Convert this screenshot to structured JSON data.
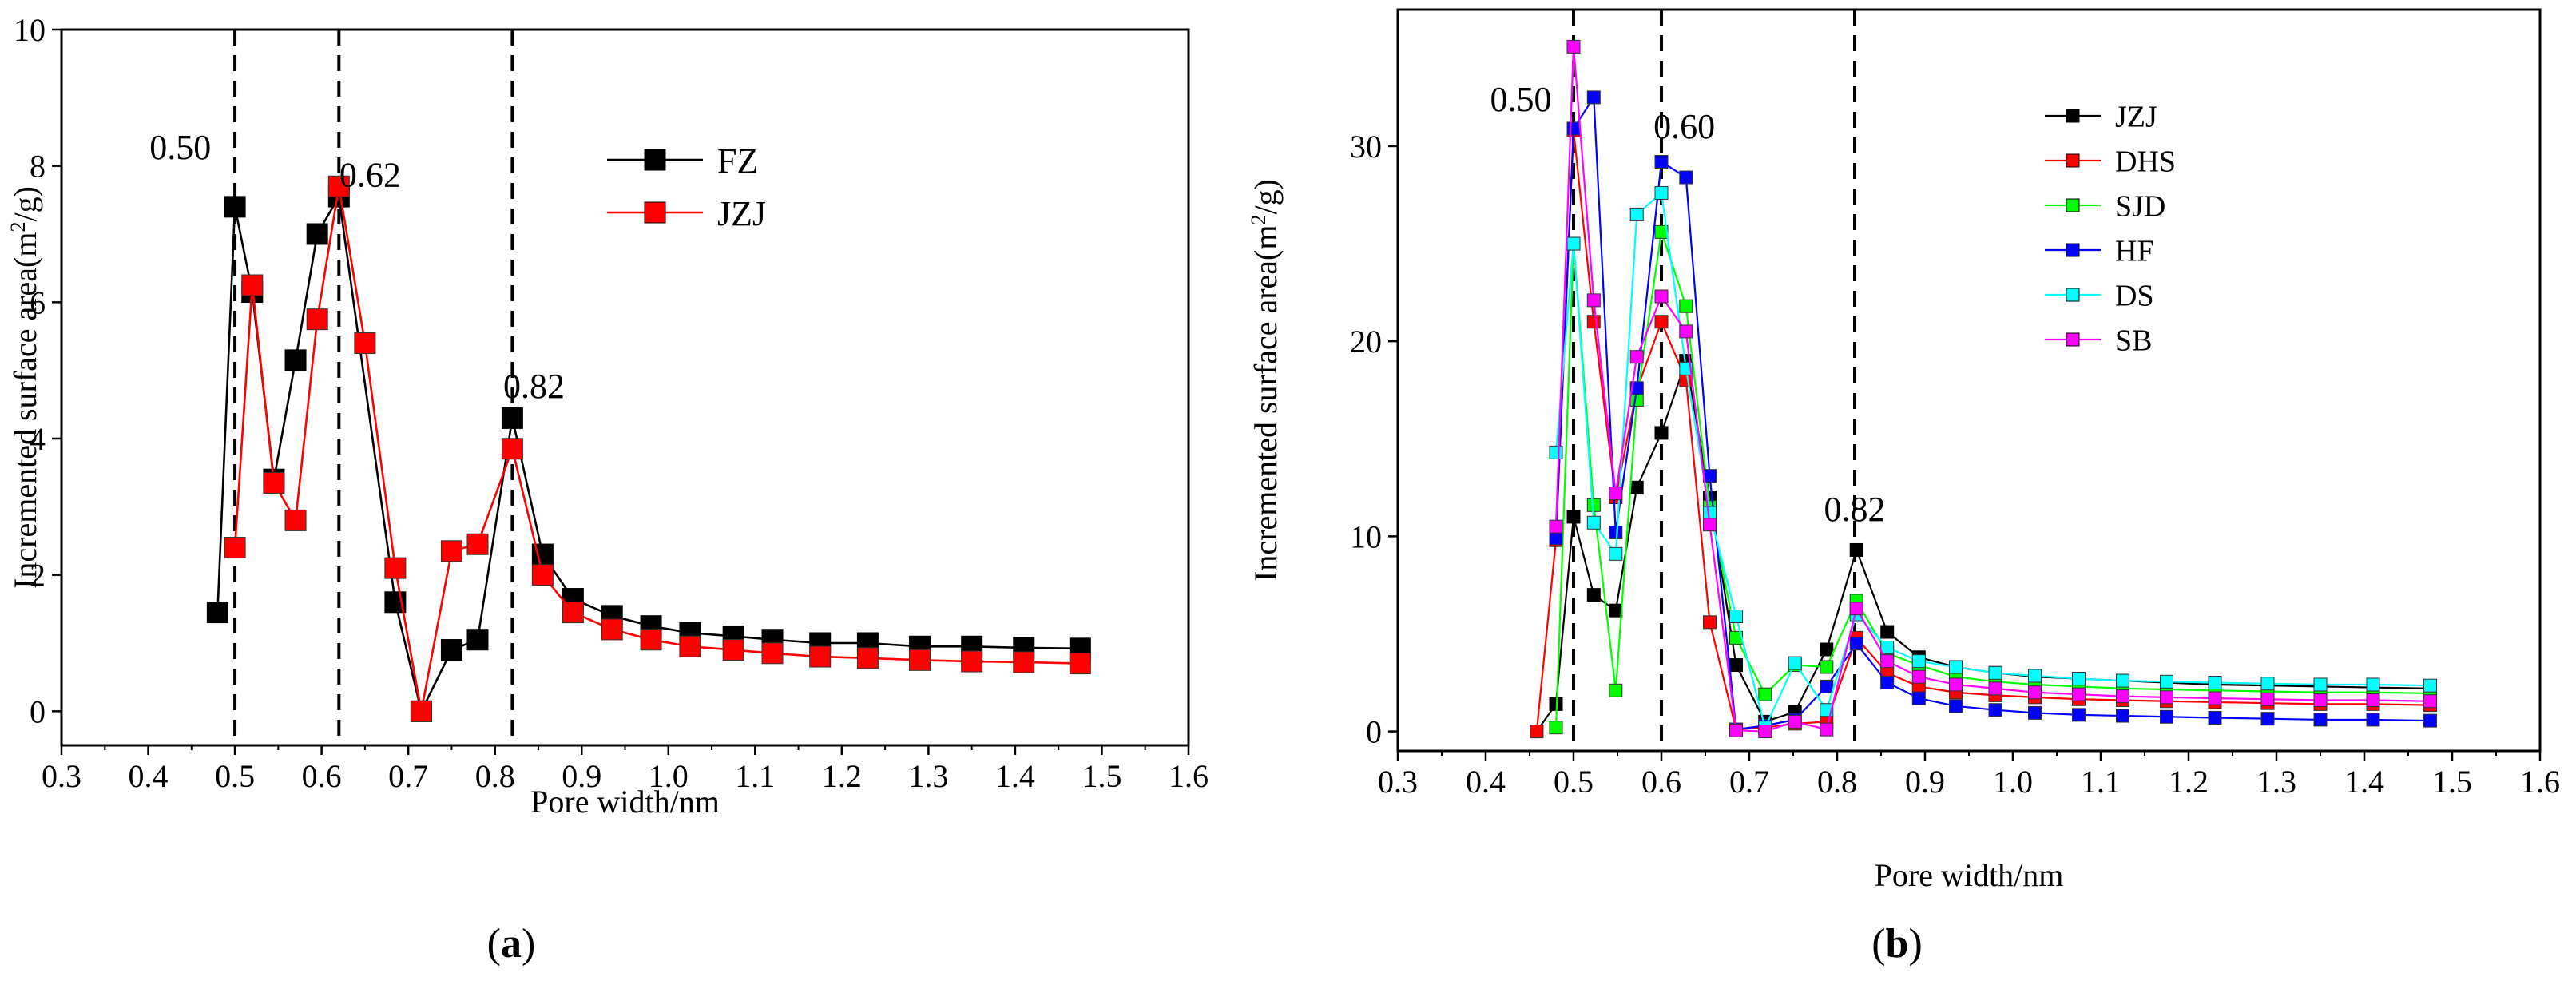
{
  "chart_data": [
    {
      "type": "line",
      "panel_label": "(a)",
      "xlabel": "Pore width/nm",
      "ylabel": "Incremented surface area(m",
      "ylabel_sup": "2",
      "ylabel_tail": "/g)",
      "xlim": [
        0.3,
        1.6
      ],
      "ylim": [
        -0.5,
        10
      ],
      "xticks": [
        0.3,
        0.4,
        0.5,
        0.6,
        0.7,
        0.8,
        0.9,
        1.0,
        1.1,
        1.2,
        1.3,
        1.4,
        1.5,
        1.6
      ],
      "xtick_labels": [
        "0.3",
        "0.4",
        "0.5",
        "0.6",
        "0.7",
        "0.8",
        "0.9",
        "1.0",
        "1.1",
        "1.2",
        "1.3",
        "1.4",
        "1.5",
        "1.6"
      ],
      "yticks": [
        0,
        2,
        4,
        6,
        8,
        10
      ],
      "ytick_labels": [
        "0",
        "2",
        "4",
        "6",
        "8",
        "10"
      ],
      "vlines": [
        0.5,
        0.62,
        0.82
      ],
      "annotations": [
        {
          "text": "0.50",
          "x": 0.437,
          "y": 8.1
        },
        {
          "text": "0.62",
          "x": 0.656,
          "y": 7.7
        },
        {
          "text": "0.82",
          "x": 0.845,
          "y": 4.6
        }
      ],
      "legend_position": "top-right",
      "series": [
        {
          "name": "FZ",
          "color": "#000000",
          "x": [
            0.48,
            0.5,
            0.52,
            0.545,
            0.57,
            0.595,
            0.62,
            0.685,
            0.715,
            0.75,
            0.78,
            0.82,
            0.855,
            0.89,
            0.935,
            0.98,
            1.025,
            1.075,
            1.12,
            1.175,
            1.23,
            1.29,
            1.35,
            1.41,
            1.475
          ],
          "y": [
            1.45,
            7.4,
            6.15,
            3.4,
            5.15,
            7.0,
            7.55,
            1.6,
            0.0,
            0.9,
            1.05,
            4.3,
            2.3,
            1.65,
            1.4,
            1.25,
            1.15,
            1.1,
            1.05,
            1.0,
            1.0,
            0.95,
            0.95,
            0.93,
            0.92
          ]
        },
        {
          "name": "JZJ",
          "color": "#ff0000",
          "x": [
            0.5,
            0.52,
            0.545,
            0.57,
            0.595,
            0.62,
            0.65,
            0.685,
            0.715,
            0.75,
            0.78,
            0.82,
            0.855,
            0.89,
            0.935,
            0.98,
            1.025,
            1.075,
            1.12,
            1.175,
            1.23,
            1.29,
            1.35,
            1.41,
            1.475
          ],
          "y": [
            2.4,
            6.25,
            3.35,
            2.8,
            5.75,
            7.7,
            5.4,
            2.1,
            0.0,
            2.35,
            2.45,
            3.85,
            2.0,
            1.45,
            1.2,
            1.05,
            0.95,
            0.9,
            0.85,
            0.8,
            0.78,
            0.75,
            0.73,
            0.72,
            0.7
          ]
        }
      ]
    },
    {
      "type": "line",
      "panel_label": "(b)",
      "xlabel": "Pore width/nm",
      "ylabel": "Incremented surface area(m",
      "ylabel_sup": "2",
      "ylabel_tail": "/g)",
      "xlim": [
        0.3,
        1.6
      ],
      "ylim": [
        -1,
        37
      ],
      "xticks": [
        0.3,
        0.4,
        0.5,
        0.6,
        0.7,
        0.8,
        0.9,
        1.0,
        1.1,
        1.2,
        1.3,
        1.4,
        1.5,
        1.6
      ],
      "xtick_labels": [
        "0.3",
        "0.4",
        "0.5",
        "0.6",
        "0.7",
        "0.8",
        "0.9",
        "1.0",
        "1.1",
        "1.2",
        "1.3",
        "1.4",
        "1.5",
        "1.6"
      ],
      "yticks": [
        0,
        10,
        20,
        30
      ],
      "ytick_labels": [
        "0",
        "10",
        "20",
        "30"
      ],
      "vlines": [
        0.5,
        0.6,
        0.82
      ],
      "annotations": [
        {
          "text": "0.50",
          "x": 0.44,
          "y": 31.8
        },
        {
          "text": "0.60",
          "x": 0.626,
          "y": 30.4
        },
        {
          "text": "0.82",
          "x": 0.82,
          "y": 10.8
        }
      ],
      "legend_position": "top-right",
      "series": [
        {
          "name": "JZJ",
          "color": "#000000",
          "x": [
            0.458,
            0.48,
            0.5,
            0.523,
            0.548,
            0.572,
            0.6,
            0.628,
            0.655,
            0.685,
            0.718,
            0.752,
            0.788,
            0.822,
            0.857,
            0.893,
            0.935,
            0.98,
            1.025,
            1.075,
            1.125,
            1.175,
            1.23,
            1.29,
            1.35,
            1.41,
            1.475
          ],
          "y": [
            0.0,
            1.4,
            11.0,
            7.0,
            6.2,
            12.5,
            15.3,
            19.0,
            12.0,
            3.4,
            0.5,
            1.0,
            4.2,
            9.3,
            5.1,
            3.8,
            3.3,
            3.0,
            2.8,
            2.7,
            2.6,
            2.5,
            2.4,
            2.35,
            2.3,
            2.25,
            2.2
          ]
        },
        {
          "name": "DHS",
          "color": "#ff0000",
          "x": [
            0.458,
            0.48,
            0.5,
            0.523,
            0.548,
            0.572,
            0.6,
            0.628,
            0.655,
            0.685,
            0.718,
            0.752,
            0.788,
            0.822,
            0.857,
            0.893,
            0.935,
            0.98,
            1.025,
            1.075,
            1.125,
            1.175,
            1.23,
            1.29,
            1.35,
            1.41,
            1.475
          ],
          "y": [
            0.0,
            9.8,
            30.8,
            21.0,
            12.0,
            17.5,
            21.0,
            18.0,
            5.6,
            0.1,
            0.2,
            0.4,
            0.5,
            4.8,
            3.0,
            2.3,
            2.0,
            1.85,
            1.75,
            1.65,
            1.6,
            1.55,
            1.5,
            1.45,
            1.4,
            1.4,
            1.35
          ]
        },
        {
          "name": "SJD",
          "color": "#00ff00",
          "x": [
            0.48,
            0.5,
            0.523,
            0.548,
            0.572,
            0.6,
            0.628,
            0.655,
            0.685,
            0.718,
            0.752,
            0.788,
            0.822,
            0.857,
            0.893,
            0.935,
            0.98,
            1.025,
            1.075,
            1.125,
            1.175,
            1.23,
            1.29,
            1.35,
            1.41,
            1.475
          ],
          "y": [
            0.2,
            25.0,
            11.6,
            2.1,
            17.0,
            25.6,
            21.8,
            11.5,
            4.8,
            1.9,
            3.4,
            3.3,
            6.7,
            4.0,
            3.4,
            2.8,
            2.55,
            2.4,
            2.3,
            2.2,
            2.15,
            2.1,
            2.05,
            2.0,
            2.0,
            1.95
          ]
        },
        {
          "name": "HF",
          "color": "#0000ff",
          "x": [
            0.48,
            0.5,
            0.523,
            0.548,
            0.572,
            0.6,
            0.628,
            0.655,
            0.685,
            0.718,
            0.752,
            0.788,
            0.822,
            0.857,
            0.893,
            0.935,
            0.98,
            1.025,
            1.075,
            1.125,
            1.175,
            1.23,
            1.29,
            1.35,
            1.41,
            1.475
          ],
          "y": [
            9.9,
            30.9,
            32.5,
            10.2,
            17.6,
            29.2,
            28.4,
            13.1,
            0.1,
            0.3,
            0.6,
            2.3,
            4.5,
            2.5,
            1.7,
            1.3,
            1.1,
            0.95,
            0.85,
            0.8,
            0.75,
            0.7,
            0.65,
            0.6,
            0.6,
            0.55
          ]
        },
        {
          "name": "DS",
          "color": "#00ffff",
          "x": [
            0.48,
            0.5,
            0.523,
            0.548,
            0.572,
            0.6,
            0.628,
            0.655,
            0.685,
            0.718,
            0.752,
            0.788,
            0.822,
            0.857,
            0.893,
            0.935,
            0.98,
            1.025,
            1.075,
            1.125,
            1.175,
            1.23,
            1.29,
            1.35,
            1.41,
            1.475
          ],
          "y": [
            14.3,
            25.0,
            10.7,
            9.1,
            26.5,
            27.6,
            18.6,
            11.2,
            5.9,
            0.2,
            3.5,
            1.1,
            6.0,
            4.3,
            3.6,
            3.3,
            3.0,
            2.85,
            2.7,
            2.6,
            2.55,
            2.5,
            2.45,
            2.4,
            2.4,
            2.35
          ]
        },
        {
          "name": "SB",
          "color": "#ff00ff",
          "x": [
            0.48,
            0.5,
            0.523,
            0.548,
            0.572,
            0.6,
            0.628,
            0.655,
            0.685,
            0.718,
            0.752,
            0.788,
            0.822,
            0.857,
            0.893,
            0.935,
            0.98,
            1.025,
            1.075,
            1.125,
            1.175,
            1.23,
            1.29,
            1.35,
            1.41,
            1.475
          ],
          "y": [
            10.5,
            35.1,
            22.1,
            12.2,
            19.2,
            22.3,
            20.5,
            10.6,
            0.05,
            0.0,
            0.5,
            0.1,
            6.3,
            3.6,
            2.8,
            2.4,
            2.2,
            2.0,
            1.9,
            1.8,
            1.75,
            1.7,
            1.65,
            1.6,
            1.6,
            1.55
          ]
        }
      ]
    }
  ]
}
